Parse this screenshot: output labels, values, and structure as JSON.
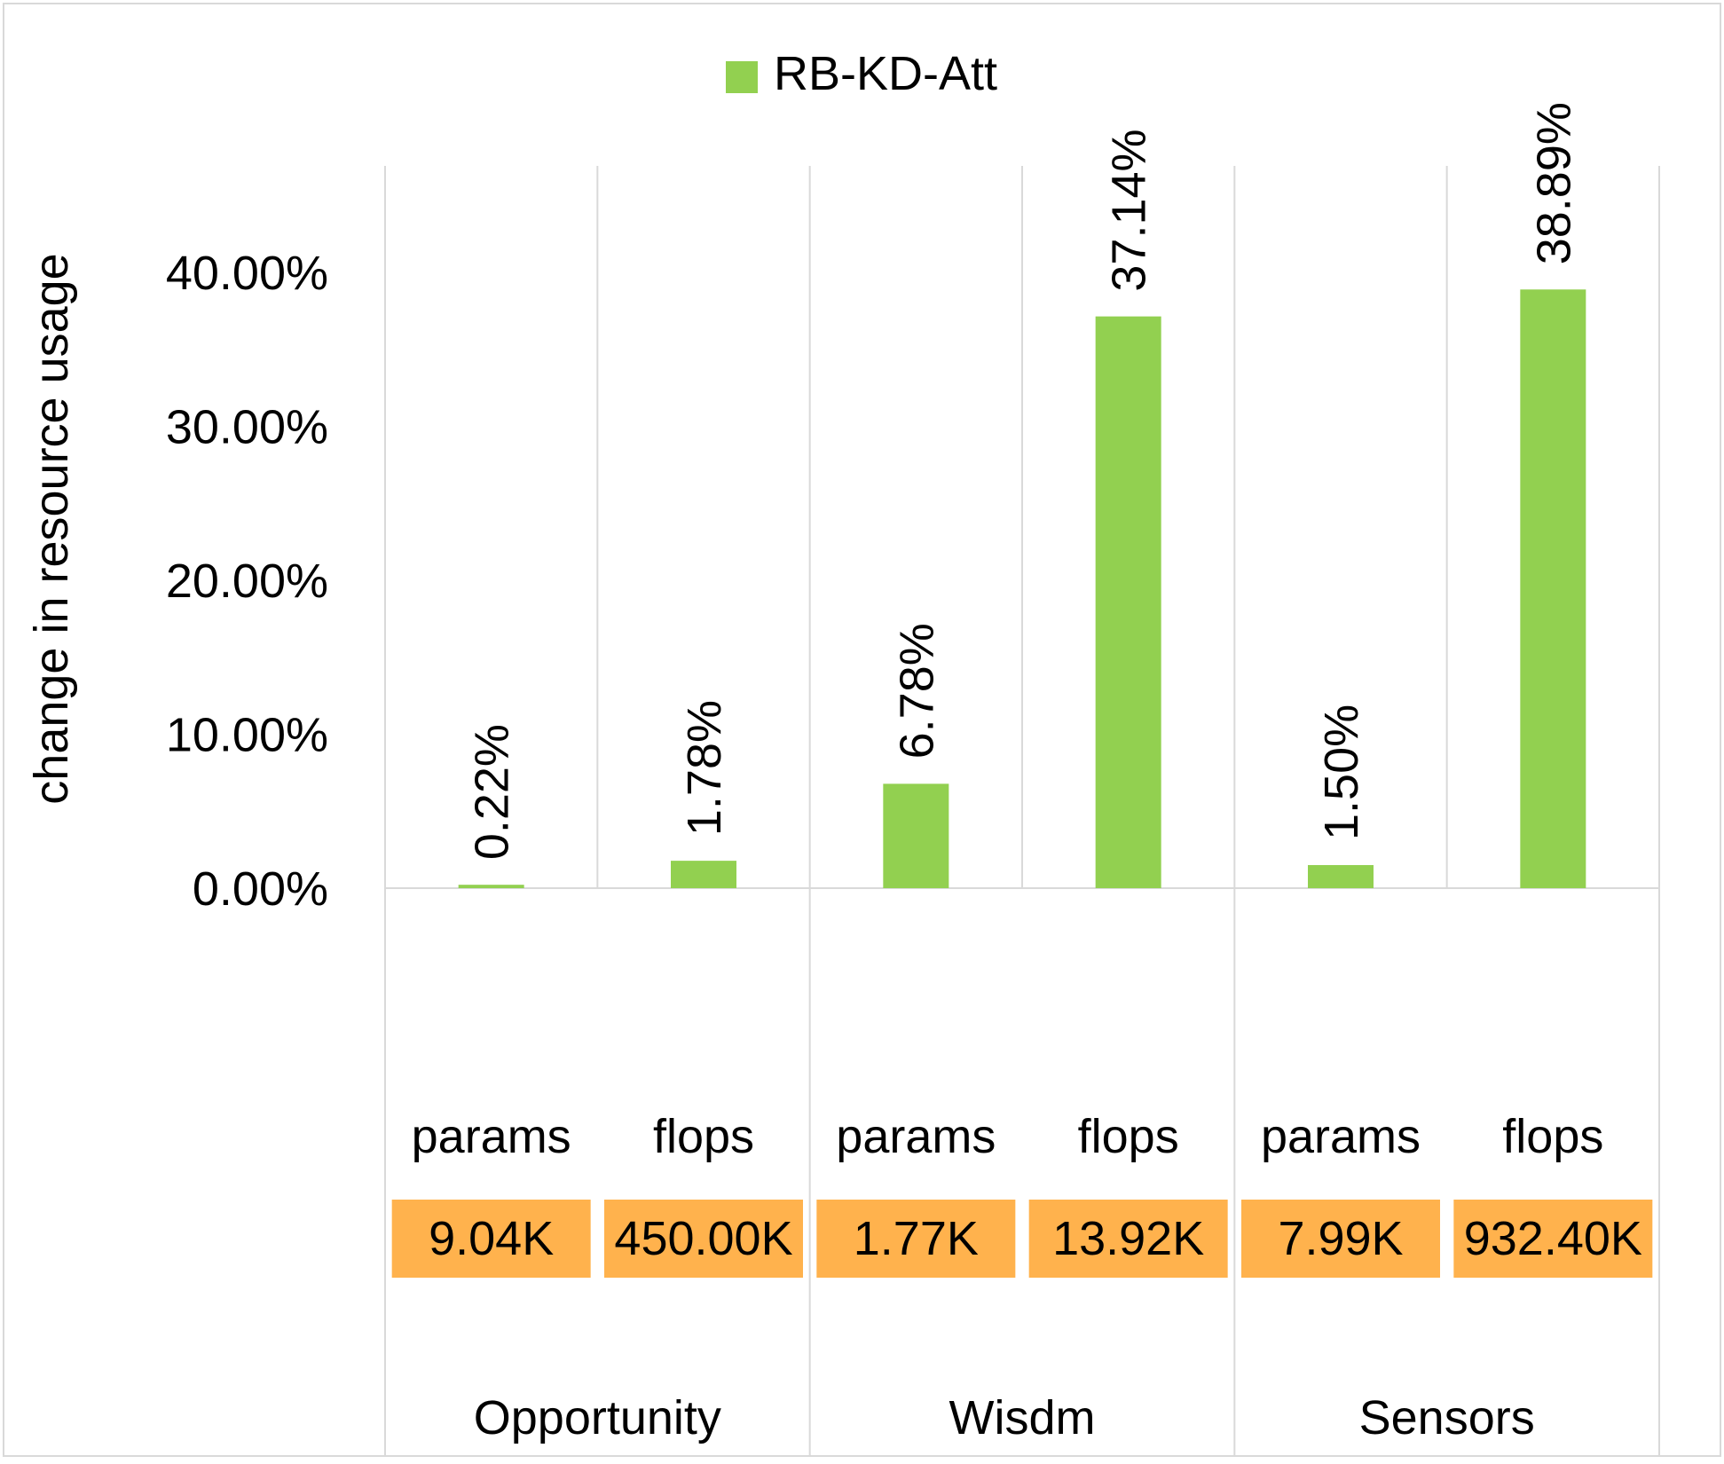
{
  "chart_data": {
    "type": "bar",
    "title": "",
    "ylabel": "change in resource usage",
    "xlabel": "",
    "ylim": [
      0,
      0.45
    ],
    "yticks": [
      {
        "value": 0.0,
        "label": "0.00%"
      },
      {
        "value": 0.1,
        "label": "10.00%"
      },
      {
        "value": 0.2,
        "label": "20.00%"
      },
      {
        "value": 0.3,
        "label": "30.00%"
      },
      {
        "value": 0.4,
        "label": "40.00%"
      }
    ],
    "grid": "vertical separators between categories",
    "legend": {
      "position": "top-center",
      "entries": [
        "RB-KD-Att"
      ]
    },
    "groups": [
      {
        "name": "Opportunity",
        "items": [
          {
            "category": "params",
            "value": 0.0022,
            "label": "0.22%",
            "resource": "9.04K"
          },
          {
            "category": "flops",
            "value": 0.0178,
            "label": "1.78%",
            "resource": "450.00K"
          }
        ]
      },
      {
        "name": "Wisdm",
        "items": [
          {
            "category": "params",
            "value": 0.0678,
            "label": "6.78%",
            "resource": "1.77K"
          },
          {
            "category": "flops",
            "value": 0.3714,
            "label": "37.14%",
            "resource": "13.92K"
          }
        ]
      },
      {
        "name": "Sensors",
        "items": [
          {
            "category": "params",
            "value": 0.015,
            "label": "1.50%",
            "resource": "7.99K"
          },
          {
            "category": "flops",
            "value": 0.3889,
            "label": "38.89%",
            "resource": "932.40K"
          }
        ]
      }
    ],
    "series": [
      {
        "name": "RB-KD-Att",
        "color": "#92d050",
        "values": [
          0.0022,
          0.0178,
          0.0678,
          0.3714,
          0.015,
          0.3889
        ]
      }
    ],
    "resource_box_color": "#ffb24d"
  }
}
